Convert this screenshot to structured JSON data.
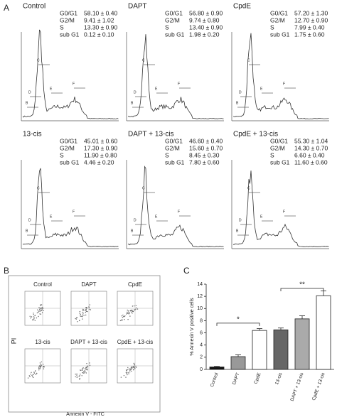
{
  "panel_a": {
    "label": "A",
    "plots": [
      {
        "title": "Control",
        "stats": [
          [
            "G0/G1",
            "58.10 ± 0.40"
          ],
          [
            "G2/M",
            "9.41 ± 1.02"
          ],
          [
            "S",
            "13.30 ± 0.90"
          ],
          [
            "sub G1",
            "0.12 ± 0.10"
          ]
        ],
        "gates": [
          "B",
          "C",
          "D",
          "E",
          "F"
        ]
      },
      {
        "title": "DAPT",
        "stats": [
          [
            "G0/G1",
            "56.80 ± 0.90"
          ],
          [
            "G2/M",
            "9.74 ± 0.80"
          ],
          [
            "S",
            "13.40 ± 0.90"
          ],
          [
            "sub G1",
            "1.98 ± 0.20"
          ]
        ],
        "gates": [
          "B",
          "C",
          "D",
          "E",
          "F"
        ]
      },
      {
        "title": "CpdE",
        "stats": [
          [
            "G0/G1",
            "57.20 ± 1.30"
          ],
          [
            "G2/M",
            "12.70 ± 0.90"
          ],
          [
            "S",
            "7.99 ± 0.40"
          ],
          [
            "sub G1",
            "1.75 ± 0.60"
          ]
        ],
        "gates": [
          "B",
          "C",
          "D",
          "E",
          "F"
        ]
      },
      {
        "title": "13-cis",
        "stats": [
          [
            "G0/G1",
            "45.01 ± 0.60"
          ],
          [
            "G2/M",
            "17.30 ± 0.90"
          ],
          [
            "S",
            "11.90 ± 0.80"
          ],
          [
            "sub G1",
            "4.46 ± 0.20"
          ]
        ],
        "gates": [
          "B",
          "C",
          "D",
          "E",
          "F"
        ]
      },
      {
        "title": "DAPT + 13-cis",
        "stats": [
          [
            "G0/G1",
            "46.60 ± 0.40"
          ],
          [
            "G2/M",
            "15.60 ± 0.70"
          ],
          [
            "S",
            "8.45 ± 0.30"
          ],
          [
            "sub G1",
            "7.80 ± 0.60"
          ]
        ],
        "gates": [
          "B",
          "C",
          "D",
          "E",
          "F"
        ]
      },
      {
        "title": "CpdE + 13-cis",
        "stats": [
          [
            "G0/G1",
            "55.30 ± 1.04"
          ],
          [
            "G2/M",
            "14.30 ± 0.70"
          ],
          [
            "S",
            "6.60 ± 0.40"
          ],
          [
            "sub G1",
            "11.60 ± 0.60"
          ]
        ],
        "gates": [
          "B",
          "C",
          "D",
          "E",
          "F"
        ]
      }
    ]
  },
  "panel_b": {
    "label": "B",
    "y_axis": "PI",
    "x_axis": "Annexin V - FITC",
    "plots": [
      "Control",
      "DAPT",
      "CpdE",
      "13-cis",
      "DAPT + 13-cis",
      "CpdE + 13-cis"
    ]
  },
  "chart_data": {
    "type": "bar",
    "panel_label": "C",
    "y_label": "% Annexin V positive cells",
    "categories": [
      "Control",
      "DAPT",
      "CpdE",
      "13-cis",
      "DAPT + 13-cis",
      "CpdE + 13-cis"
    ],
    "values": [
      0.4,
      2.1,
      6.4,
      6.5,
      8.3,
      12.1
    ],
    "errors": [
      0.1,
      0.3,
      0.3,
      0.3,
      0.5,
      0.8
    ],
    "colors": [
      "#111111",
      "#999999",
      "#ffffff",
      "#666666",
      "#aaaaaa",
      "#ffffff"
    ],
    "ylim": [
      0,
      14
    ],
    "yticks": [
      0,
      2,
      4,
      6,
      8,
      10,
      12,
      14
    ],
    "annotations": [
      "*",
      "**"
    ]
  }
}
